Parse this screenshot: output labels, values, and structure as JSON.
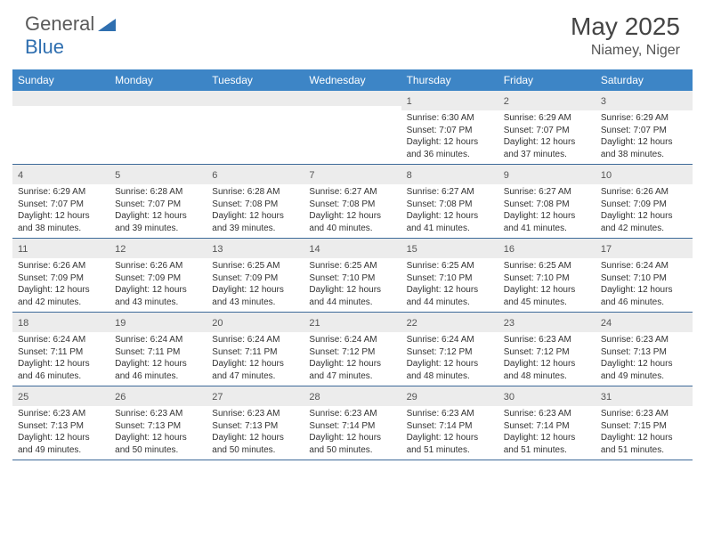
{
  "brand": {
    "part1": "General",
    "part2": "Blue"
  },
  "title": "May 2025",
  "location": "Niamey, Niger",
  "colors": {
    "header_bg": "#3d85c6",
    "header_text": "#ffffff",
    "daynum_bg": "#ececec",
    "week_border": "#3d6a99",
    "text": "#333333",
    "title_color": "#444444"
  },
  "weekdays": [
    "Sunday",
    "Monday",
    "Tuesday",
    "Wednesday",
    "Thursday",
    "Friday",
    "Saturday"
  ],
  "weeks": [
    [
      {
        "n": "",
        "sunrise": "",
        "sunset": "",
        "daylight": ""
      },
      {
        "n": "",
        "sunrise": "",
        "sunset": "",
        "daylight": ""
      },
      {
        "n": "",
        "sunrise": "",
        "sunset": "",
        "daylight": ""
      },
      {
        "n": "",
        "sunrise": "",
        "sunset": "",
        "daylight": ""
      },
      {
        "n": "1",
        "sunrise": "Sunrise: 6:30 AM",
        "sunset": "Sunset: 7:07 PM",
        "daylight": "Daylight: 12 hours and 36 minutes."
      },
      {
        "n": "2",
        "sunrise": "Sunrise: 6:29 AM",
        "sunset": "Sunset: 7:07 PM",
        "daylight": "Daylight: 12 hours and 37 minutes."
      },
      {
        "n": "3",
        "sunrise": "Sunrise: 6:29 AM",
        "sunset": "Sunset: 7:07 PM",
        "daylight": "Daylight: 12 hours and 38 minutes."
      }
    ],
    [
      {
        "n": "4",
        "sunrise": "Sunrise: 6:29 AM",
        "sunset": "Sunset: 7:07 PM",
        "daylight": "Daylight: 12 hours and 38 minutes."
      },
      {
        "n": "5",
        "sunrise": "Sunrise: 6:28 AM",
        "sunset": "Sunset: 7:07 PM",
        "daylight": "Daylight: 12 hours and 39 minutes."
      },
      {
        "n": "6",
        "sunrise": "Sunrise: 6:28 AM",
        "sunset": "Sunset: 7:08 PM",
        "daylight": "Daylight: 12 hours and 39 minutes."
      },
      {
        "n": "7",
        "sunrise": "Sunrise: 6:27 AM",
        "sunset": "Sunset: 7:08 PM",
        "daylight": "Daylight: 12 hours and 40 minutes."
      },
      {
        "n": "8",
        "sunrise": "Sunrise: 6:27 AM",
        "sunset": "Sunset: 7:08 PM",
        "daylight": "Daylight: 12 hours and 41 minutes."
      },
      {
        "n": "9",
        "sunrise": "Sunrise: 6:27 AM",
        "sunset": "Sunset: 7:08 PM",
        "daylight": "Daylight: 12 hours and 41 minutes."
      },
      {
        "n": "10",
        "sunrise": "Sunrise: 6:26 AM",
        "sunset": "Sunset: 7:09 PM",
        "daylight": "Daylight: 12 hours and 42 minutes."
      }
    ],
    [
      {
        "n": "11",
        "sunrise": "Sunrise: 6:26 AM",
        "sunset": "Sunset: 7:09 PM",
        "daylight": "Daylight: 12 hours and 42 minutes."
      },
      {
        "n": "12",
        "sunrise": "Sunrise: 6:26 AM",
        "sunset": "Sunset: 7:09 PM",
        "daylight": "Daylight: 12 hours and 43 minutes."
      },
      {
        "n": "13",
        "sunrise": "Sunrise: 6:25 AM",
        "sunset": "Sunset: 7:09 PM",
        "daylight": "Daylight: 12 hours and 43 minutes."
      },
      {
        "n": "14",
        "sunrise": "Sunrise: 6:25 AM",
        "sunset": "Sunset: 7:10 PM",
        "daylight": "Daylight: 12 hours and 44 minutes."
      },
      {
        "n": "15",
        "sunrise": "Sunrise: 6:25 AM",
        "sunset": "Sunset: 7:10 PM",
        "daylight": "Daylight: 12 hours and 44 minutes."
      },
      {
        "n": "16",
        "sunrise": "Sunrise: 6:25 AM",
        "sunset": "Sunset: 7:10 PM",
        "daylight": "Daylight: 12 hours and 45 minutes."
      },
      {
        "n": "17",
        "sunrise": "Sunrise: 6:24 AM",
        "sunset": "Sunset: 7:10 PM",
        "daylight": "Daylight: 12 hours and 46 minutes."
      }
    ],
    [
      {
        "n": "18",
        "sunrise": "Sunrise: 6:24 AM",
        "sunset": "Sunset: 7:11 PM",
        "daylight": "Daylight: 12 hours and 46 minutes."
      },
      {
        "n": "19",
        "sunrise": "Sunrise: 6:24 AM",
        "sunset": "Sunset: 7:11 PM",
        "daylight": "Daylight: 12 hours and 46 minutes."
      },
      {
        "n": "20",
        "sunrise": "Sunrise: 6:24 AM",
        "sunset": "Sunset: 7:11 PM",
        "daylight": "Daylight: 12 hours and 47 minutes."
      },
      {
        "n": "21",
        "sunrise": "Sunrise: 6:24 AM",
        "sunset": "Sunset: 7:12 PM",
        "daylight": "Daylight: 12 hours and 47 minutes."
      },
      {
        "n": "22",
        "sunrise": "Sunrise: 6:24 AM",
        "sunset": "Sunset: 7:12 PM",
        "daylight": "Daylight: 12 hours and 48 minutes."
      },
      {
        "n": "23",
        "sunrise": "Sunrise: 6:23 AM",
        "sunset": "Sunset: 7:12 PM",
        "daylight": "Daylight: 12 hours and 48 minutes."
      },
      {
        "n": "24",
        "sunrise": "Sunrise: 6:23 AM",
        "sunset": "Sunset: 7:13 PM",
        "daylight": "Daylight: 12 hours and 49 minutes."
      }
    ],
    [
      {
        "n": "25",
        "sunrise": "Sunrise: 6:23 AM",
        "sunset": "Sunset: 7:13 PM",
        "daylight": "Daylight: 12 hours and 49 minutes."
      },
      {
        "n": "26",
        "sunrise": "Sunrise: 6:23 AM",
        "sunset": "Sunset: 7:13 PM",
        "daylight": "Daylight: 12 hours and 50 minutes."
      },
      {
        "n": "27",
        "sunrise": "Sunrise: 6:23 AM",
        "sunset": "Sunset: 7:13 PM",
        "daylight": "Daylight: 12 hours and 50 minutes."
      },
      {
        "n": "28",
        "sunrise": "Sunrise: 6:23 AM",
        "sunset": "Sunset: 7:14 PM",
        "daylight": "Daylight: 12 hours and 50 minutes."
      },
      {
        "n": "29",
        "sunrise": "Sunrise: 6:23 AM",
        "sunset": "Sunset: 7:14 PM",
        "daylight": "Daylight: 12 hours and 51 minutes."
      },
      {
        "n": "30",
        "sunrise": "Sunrise: 6:23 AM",
        "sunset": "Sunset: 7:14 PM",
        "daylight": "Daylight: 12 hours and 51 minutes."
      },
      {
        "n": "31",
        "sunrise": "Sunrise: 6:23 AM",
        "sunset": "Sunset: 7:15 PM",
        "daylight": "Daylight: 12 hours and 51 minutes."
      }
    ]
  ]
}
